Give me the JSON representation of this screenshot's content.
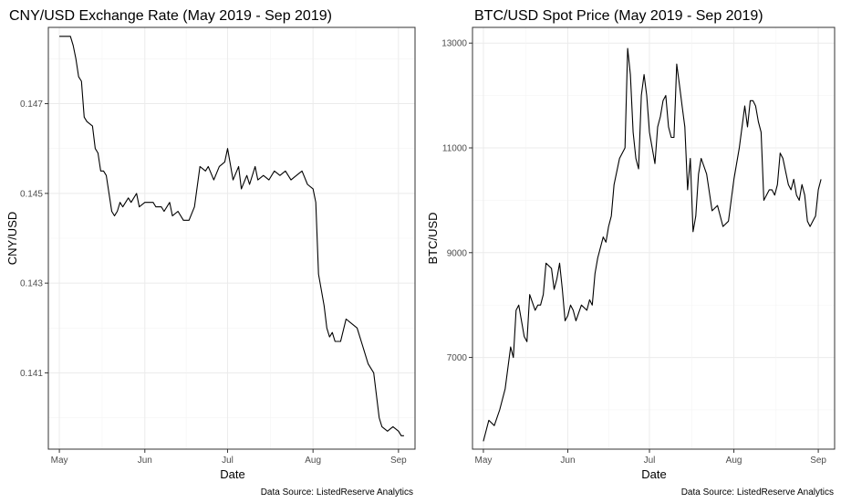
{
  "chart_data": [
    {
      "type": "line",
      "title": "CNY/USD Exchange Rate (May 2019 - Sep 2019)",
      "xlabel": "Date",
      "ylabel": "CNY/USD",
      "caption": "Data Source: ListedReserve Analytics",
      "x_ticks": [
        "May",
        "Jun",
        "Jul",
        "Aug",
        "Sep"
      ],
      "y_ticks": [
        "0.141",
        "0.143",
        "0.145",
        "0.147"
      ],
      "ylim": [
        0.1393,
        0.1487
      ],
      "x_domain": [
        "2019-04-27",
        "2019-09-07"
      ],
      "series": [
        {
          "name": "CNY/USD",
          "x": [
            "2019-05-01",
            "2019-05-05",
            "2019-05-06",
            "2019-05-07",
            "2019-05-08",
            "2019-05-09",
            "2019-05-10",
            "2019-05-11",
            "2019-05-13",
            "2019-05-14",
            "2019-05-15",
            "2019-05-16",
            "2019-05-17",
            "2019-05-18",
            "2019-05-20",
            "2019-05-21",
            "2019-05-22",
            "2019-05-23",
            "2019-05-24",
            "2019-05-26",
            "2019-05-27",
            "2019-05-28",
            "2019-05-29",
            "2019-05-30",
            "2019-06-01",
            "2019-06-03",
            "2019-06-04",
            "2019-06-05",
            "2019-06-07",
            "2019-06-08",
            "2019-06-10",
            "2019-06-11",
            "2019-06-13",
            "2019-06-15",
            "2019-06-17",
            "2019-06-19",
            "2019-06-21",
            "2019-06-23",
            "2019-06-24",
            "2019-06-26",
            "2019-06-28",
            "2019-06-30",
            "2019-07-01",
            "2019-07-03",
            "2019-07-05",
            "2019-07-06",
            "2019-07-08",
            "2019-07-09",
            "2019-07-11",
            "2019-07-12",
            "2019-07-14",
            "2019-07-16",
            "2019-07-18",
            "2019-07-20",
            "2019-07-22",
            "2019-07-24",
            "2019-07-26",
            "2019-07-28",
            "2019-07-30",
            "2019-08-01",
            "2019-08-02",
            "2019-08-03",
            "2019-08-05",
            "2019-08-06",
            "2019-08-07",
            "2019-08-08",
            "2019-08-09",
            "2019-08-11",
            "2019-08-13",
            "2019-08-15",
            "2019-08-17",
            "2019-08-19",
            "2019-08-21",
            "2019-08-23",
            "2019-08-25",
            "2019-08-26",
            "2019-08-28",
            "2019-08-30",
            "2019-09-01",
            "2019-09-02",
            "2019-09-03"
          ],
          "values": [
            0.1485,
            0.1485,
            0.1483,
            0.148,
            0.1476,
            0.1475,
            0.1467,
            0.1466,
            0.1465,
            0.146,
            0.1459,
            0.1455,
            0.1455,
            0.1454,
            0.1446,
            0.1445,
            0.1446,
            0.1448,
            0.1447,
            0.1449,
            0.1448,
            0.1449,
            0.145,
            0.1447,
            0.1448,
            0.1448,
            0.1448,
            0.1447,
            0.1447,
            0.1446,
            0.1448,
            0.1445,
            0.1446,
            0.1444,
            0.1444,
            0.1447,
            0.1456,
            0.1455,
            0.1456,
            0.1453,
            0.1456,
            0.1457,
            0.146,
            0.1453,
            0.1456,
            0.1451,
            0.1454,
            0.1452,
            0.1456,
            0.1453,
            0.1454,
            0.1453,
            0.1455,
            0.1454,
            0.1455,
            0.1453,
            0.1454,
            0.1455,
            0.1452,
            0.1451,
            0.1448,
            0.1432,
            0.1425,
            0.142,
            0.1418,
            0.1419,
            0.1417,
            0.1417,
            0.1422,
            0.1421,
            0.142,
            0.1416,
            0.1412,
            0.141,
            0.14,
            0.1398,
            0.1397,
            0.1398,
            0.1397,
            0.1396,
            0.1396
          ]
        }
      ]
    },
    {
      "type": "line",
      "title": "BTC/USD Spot Price (May 2019 - Sep 2019)",
      "xlabel": "Date",
      "ylabel": "BTC/USD",
      "caption": "Data Source: ListedReserve Analytics",
      "x_ticks": [
        "May",
        "Jun",
        "Jul",
        "Aug",
        "Sep"
      ],
      "y_ticks": [
        "7000",
        "9000",
        "11000",
        "13000"
      ],
      "ylim": [
        5250,
        13300
      ],
      "x_domain": [
        "2019-04-27",
        "2019-09-07"
      ],
      "series": [
        {
          "name": "BTC/USD",
          "x": [
            "2019-05-01",
            "2019-05-03",
            "2019-05-05",
            "2019-05-07",
            "2019-05-09",
            "2019-05-11",
            "2019-05-12",
            "2019-05-13",
            "2019-05-14",
            "2019-05-16",
            "2019-05-17",
            "2019-05-18",
            "2019-05-20",
            "2019-05-21",
            "2019-05-22",
            "2019-05-23",
            "2019-05-24",
            "2019-05-26",
            "2019-05-27",
            "2019-05-28",
            "2019-05-29",
            "2019-05-30",
            "2019-05-31",
            "2019-06-01",
            "2019-06-02",
            "2019-06-03",
            "2019-06-04",
            "2019-06-06",
            "2019-06-08",
            "2019-06-09",
            "2019-06-10",
            "2019-06-11",
            "2019-06-12",
            "2019-06-14",
            "2019-06-15",
            "2019-06-16",
            "2019-06-17",
            "2019-06-18",
            "2019-06-20",
            "2019-06-22",
            "2019-06-23",
            "2019-06-24",
            "2019-06-25",
            "2019-06-26",
            "2019-06-27",
            "2019-06-28",
            "2019-06-29",
            "2019-06-30",
            "2019-07-01",
            "2019-07-02",
            "2019-07-03",
            "2019-07-04",
            "2019-07-05",
            "2019-07-06",
            "2019-07-07",
            "2019-07-08",
            "2019-07-09",
            "2019-07-10",
            "2019-07-11",
            "2019-07-12",
            "2019-07-13",
            "2019-07-14",
            "2019-07-15",
            "2019-07-16",
            "2019-07-17",
            "2019-07-18",
            "2019-07-19",
            "2019-07-20",
            "2019-07-22",
            "2019-07-24",
            "2019-07-26",
            "2019-07-28",
            "2019-07-30",
            "2019-08-01",
            "2019-08-03",
            "2019-08-05",
            "2019-08-06",
            "2019-08-07",
            "2019-08-08",
            "2019-08-09",
            "2019-08-10",
            "2019-08-11",
            "2019-08-12",
            "2019-08-14",
            "2019-08-15",
            "2019-08-16",
            "2019-08-17",
            "2019-08-18",
            "2019-08-19",
            "2019-08-21",
            "2019-08-22",
            "2019-08-23",
            "2019-08-24",
            "2019-08-25",
            "2019-08-26",
            "2019-08-27",
            "2019-08-28",
            "2019-08-29",
            "2019-08-30",
            "2019-08-31",
            "2019-09-01",
            "2019-09-02"
          ],
          "values": [
            5400,
            5800,
            5700,
            6000,
            6400,
            7200,
            7000,
            7900,
            8000,
            7400,
            7300,
            8200,
            7900,
            8000,
            8000,
            8200,
            8800,
            8700,
            8300,
            8500,
            8800,
            8300,
            7700,
            7800,
            8000,
            7900,
            7700,
            8000,
            7900,
            8100,
            8000,
            8600,
            8900,
            9300,
            9200,
            9500,
            9700,
            10300,
            10800,
            11000,
            12900,
            12400,
            11300,
            10800,
            10600,
            12000,
            12400,
            12000,
            11300,
            11000,
            10700,
            11400,
            11600,
            11900,
            12000,
            11400,
            11200,
            11200,
            12600,
            12200,
            11800,
            11400,
            10200,
            10800,
            9400,
            9700,
            10500,
            10800,
            10500,
            9800,
            9900,
            9500,
            9600,
            10400,
            11000,
            11800,
            11400,
            11900,
            11900,
            11800,
            11500,
            11300,
            10000,
            10200,
            10200,
            10100,
            10300,
            10900,
            10800,
            10300,
            10200,
            10400,
            10100,
            10000,
            10300,
            10100,
            9600,
            9500,
            9600,
            9700,
            10200,
            10400
          ]
        }
      ]
    }
  ]
}
